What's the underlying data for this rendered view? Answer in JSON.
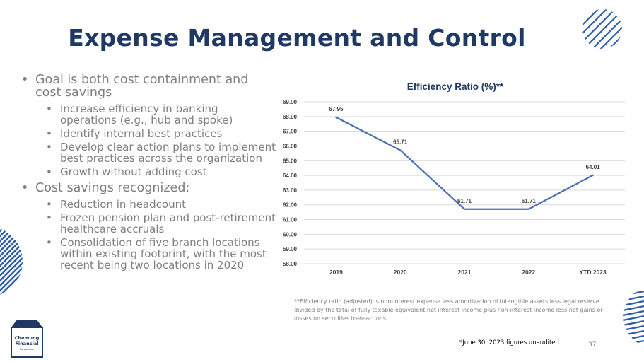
{
  "title": "Expense Management and Control",
  "bullets": {
    "goal": "Goal is both cost containment and cost savings",
    "goal_subs": [
      "Increase efficiency in banking operations (e.g., hub and spoke)",
      "Identify internal best practices",
      "Develop clear action plans to implement best practices across the organization",
      "Growth without adding cost"
    ],
    "savings": "Cost savings recognized:",
    "savings_subs": [
      "Reduction in headcount",
      "Frozen pension plan and post-retirement healthcare accruals",
      "Consolidation of five branch locations within existing footprint, with the most recent being two locations in 2020"
    ]
  },
  "chart_data": {
    "type": "line",
    "title": "Efficiency Ratio (%)**",
    "categories": [
      "2019",
      "2020",
      "2021",
      "2022",
      "YTD 2023"
    ],
    "values": [
      67.95,
      65.71,
      61.71,
      61.71,
      64.01
    ],
    "value_labels": [
      "67.95",
      "65.71",
      "61.71",
      "61.71",
      "64.01"
    ],
    "ylim": [
      58.0,
      69.0
    ],
    "yticks": [
      "58.00",
      "59.00",
      "60.00",
      "61.00",
      "62.00",
      "63.00",
      "64.00",
      "65.00",
      "66.00",
      "67.00",
      "68.00",
      "69.00"
    ],
    "xlabel": "",
    "ylabel": "",
    "grid": true,
    "line_color": "#4a6fb5"
  },
  "footnote": "**Efficiency ratio (adjusted) is non-interest expense less amortization of intangible assets less legal reserve divided by the total of fully taxable equivalent net interest income plus non-interest income less net gains or losses on securities transactions",
  "unaudited_note": "*June 30, 2023 figures unaudited",
  "page_number": "37",
  "logo": {
    "line1": "Chemung",
    "line2": "Financial",
    "line3": "Corporation"
  },
  "colors": {
    "title": "#1f3864",
    "text": "#7f7f7f",
    "line": "#4a6fb5",
    "stripe": "#2e5fa3"
  }
}
